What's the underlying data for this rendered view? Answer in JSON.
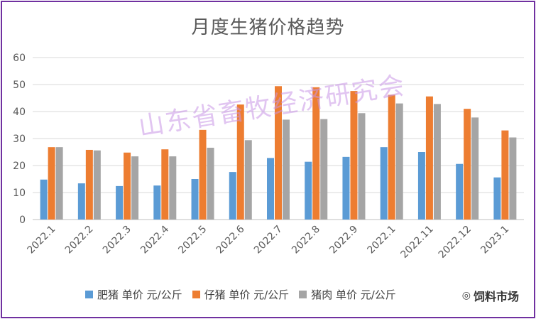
{
  "chart_data": {
    "type": "bar",
    "title": "月度生猪价格趋势",
    "xlabel": "",
    "ylabel": "",
    "ylim": [
      0,
      60
    ],
    "yticks": [
      0,
      10,
      20,
      30,
      40,
      50,
      60
    ],
    "grid": true,
    "legend_position": "bottom",
    "categories": [
      "2022.1",
      "2022.2",
      "2022.3",
      "2022.4",
      "2022.5",
      "2022.6",
      "2022.7",
      "2022.8",
      "2022.9",
      "2022.1",
      "2022.11",
      "2022.12",
      "2023.1"
    ],
    "series": [
      {
        "name": "肥猪 单价 元/公斤",
        "color": "#5b9bd5",
        "values": [
          14.8,
          13.4,
          12.4,
          12.6,
          15.0,
          17.6,
          22.8,
          21.4,
          23.2,
          26.8,
          25.0,
          20.6,
          15.6
        ]
      },
      {
        "name": "仔猪 单价 元/公斤",
        "color": "#ed7d31",
        "values": [
          26.8,
          25.8,
          24.8,
          26.0,
          33.2,
          42.6,
          49.4,
          49.0,
          47.6,
          46.2,
          45.6,
          41.0,
          33.0
        ]
      },
      {
        "name": "猪肉 单价 元/公斤",
        "color": "#a5a5a5",
        "values": [
          26.8,
          25.6,
          23.4,
          23.4,
          26.6,
          29.4,
          37.0,
          37.2,
          39.4,
          43.0,
          42.8,
          37.8,
          30.4
        ]
      }
    ]
  },
  "watermark": "山东省畜牧经济研究会",
  "brand": {
    "icon": "wechat-icon",
    "text": "饲料市场"
  }
}
